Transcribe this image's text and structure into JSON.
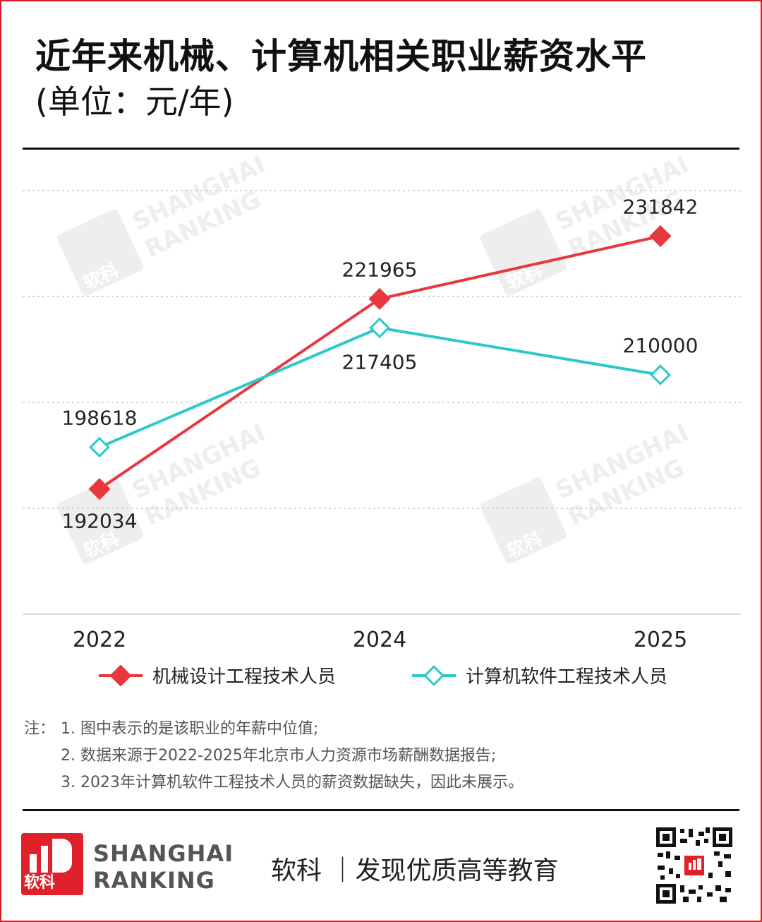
{
  "header": {
    "title": "近年来机械、计算机相关职业薪资水平",
    "unit": "(单位：元/年)"
  },
  "chart_data": {
    "type": "line",
    "categories": [
      "2022",
      "2024",
      "2025"
    ],
    "ylim": [
      180000,
      240000
    ],
    "grid": true,
    "legend_position": "bottom",
    "series": [
      {
        "name": "机械设计工程技术人员",
        "color": "#e8383d",
        "marker": "filled-diamond",
        "values": [
          192034,
          221965,
          231842
        ],
        "labels": [
          "192034",
          "221965",
          "231842"
        ]
      },
      {
        "name": "计算机软件工程技术人员",
        "color": "#2ec8c8",
        "marker": "hollow-diamond",
        "values": [
          198618,
          217405,
          210000
        ],
        "labels": [
          "198618",
          "217405",
          "210000"
        ]
      }
    ]
  },
  "notes": {
    "prefix": "注：",
    "items": [
      "1. 图中表示的是该职业的年薪中位值;",
      "2. 数据来源于2022-2025年北京市人力资源市场薪酬数据报告;",
      "3. 2023年计算机软件工程技术人员的薪资数据缺失，因此未展示。"
    ]
  },
  "footer": {
    "logo_cn": "软科",
    "brand_line1": "SHANGHAI",
    "brand_line2": "RANKING",
    "slogan": "软科 ｜发现优质高等教育"
  },
  "watermark": {
    "line1": "SHANGHAI",
    "line2": "RANKING",
    "cn": "软科"
  },
  "colors": {
    "accent_red": "#d81e2a",
    "series_red": "#e8383d",
    "series_cyan": "#2ec8c8"
  }
}
